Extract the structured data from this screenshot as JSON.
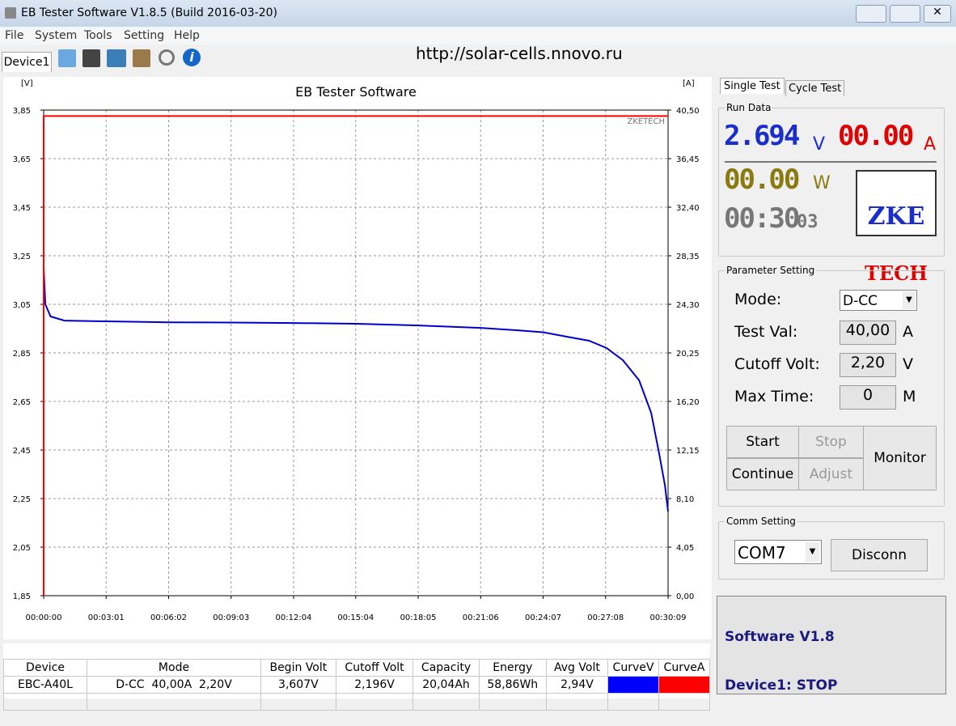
{
  "window": {
    "title": "EB Tester Software V1.8.5 (Build 2016-03-20)"
  },
  "menu": [
    "File",
    "System",
    "Tools",
    "Setting",
    "Help"
  ],
  "toolbar": {
    "tab": "Device1",
    "url": "http://solar-cells.nnovo.ru"
  },
  "chart_data": {
    "type": "line",
    "title": "EB Tester Software",
    "y_label": "[V]",
    "y2_label": "[A]",
    "watermark": "ZKETECH",
    "xlim": [
      0,
      1809
    ],
    "xticks": [
      {
        "value": 0,
        "label": "00:00:00"
      },
      {
        "value": 181,
        "label": "00:03:01"
      },
      {
        "value": 362,
        "label": "00:06:02"
      },
      {
        "value": 543,
        "label": "00:09:03"
      },
      {
        "value": 724,
        "label": "00:12:04"
      },
      {
        "value": 904,
        "label": "00:15:04"
      },
      {
        "value": 1085,
        "label": "00:18:05"
      },
      {
        "value": 1266,
        "label": "00:21:06"
      },
      {
        "value": 1447,
        "label": "00:24:07"
      },
      {
        "value": 1628,
        "label": "00:27:08"
      },
      {
        "value": 1809,
        "label": "00:30:09"
      }
    ],
    "ylim": [
      1.85,
      3.85
    ],
    "yticks": [
      {
        "value": 1.85,
        "label": "1,85"
      },
      {
        "value": 2.05,
        "label": "2,05"
      },
      {
        "value": 2.25,
        "label": "2,25"
      },
      {
        "value": 2.45,
        "label": "2,45"
      },
      {
        "value": 2.65,
        "label": "2,65"
      },
      {
        "value": 2.85,
        "label": "2,85"
      },
      {
        "value": 3.05,
        "label": "3,05"
      },
      {
        "value": 3.25,
        "label": "3,25"
      },
      {
        "value": 3.45,
        "label": "3,45"
      },
      {
        "value": 3.65,
        "label": "3,65"
      },
      {
        "value": 3.85,
        "label": "3,85"
      }
    ],
    "y2lim": [
      0,
      40.5
    ],
    "y2ticks": [
      {
        "value": 0,
        "label": "0,00"
      },
      {
        "value": 4.05,
        "label": "4,05"
      },
      {
        "value": 8.1,
        "label": "8,10"
      },
      {
        "value": 12.15,
        "label": "12,15"
      },
      {
        "value": 16.2,
        "label": "16,20"
      },
      {
        "value": 20.25,
        "label": "20,25"
      },
      {
        "value": 24.3,
        "label": "24,30"
      },
      {
        "value": 28.35,
        "label": "28,35"
      },
      {
        "value": 32.4,
        "label": "32,40"
      },
      {
        "value": 36.45,
        "label": "36,45"
      },
      {
        "value": 40.5,
        "label": "40,50"
      }
    ],
    "grid": true,
    "series": [
      {
        "color": "#0000cc",
        "x": [
          0,
          0,
          5,
          20,
          60,
          181,
          362,
          543,
          724,
          904,
          1085,
          1266,
          1373,
          1447,
          1514,
          1580,
          1631,
          1678,
          1725,
          1760,
          1783,
          1800,
          1809
        ],
        "values": [
          3.6,
          3.2,
          3.05,
          3.0,
          2.983,
          2.98,
          2.976,
          2.975,
          2.973,
          2.97,
          2.963,
          2.953,
          2.943,
          2.935,
          2.917,
          2.9,
          2.87,
          2.82,
          2.737,
          2.603,
          2.437,
          2.303,
          2.197
        ]
      },
      {
        "color": "#ff0000",
        "axis": "y2",
        "x": [
          0,
          0,
          1809
        ],
        "values": [
          0,
          40.0,
          40.0
        ]
      }
    ]
  },
  "table": {
    "headers": [
      "Device",
      "Mode",
      "Begin Volt",
      "Cutoff Volt",
      "Capacity",
      "Energy",
      "Avg Volt",
      "CurveV",
      "CurveA"
    ],
    "rows": [
      [
        "EBC-A40L",
        "D-CC  40,00A  2,20V",
        "3,607V",
        "2,196V",
        "20,04Ah",
        "58,86Wh",
        "2,94V"
      ]
    ]
  },
  "panel": {
    "tabs": [
      "Single Test",
      "Cycle Test"
    ],
    "run_data": {
      "title": "Run Data",
      "voltage": "2.694",
      "voltage_unit": "V",
      "current": "00.00",
      "current_unit": "A",
      "power": "00.00",
      "power_unit": "W",
      "time": "00:30",
      "time_seconds": "03",
      "logo_top": "ZKE",
      "logo_bottom": "TECH"
    },
    "parameters": {
      "title": "Parameter Setting",
      "mode_label": "Mode:",
      "mode": "D-CC",
      "test_label": "Test Val:",
      "test_value": "40,00",
      "test_unit": "A",
      "cutoff_label": "Cutoff Volt:",
      "cutoff_value": "2,20",
      "cutoff_unit": "V",
      "time_label": "Max Time:",
      "time_value": "0",
      "time_unit": "M",
      "buttons": [
        "Start",
        "Stop",
        "Continue",
        "Adjust",
        "Monitor"
      ]
    },
    "comm": {
      "title": "Comm Setting",
      "port": "COM7",
      "button": "Disconn"
    },
    "status": [
      "Software V1.8",
      "Device1: STOP"
    ]
  }
}
